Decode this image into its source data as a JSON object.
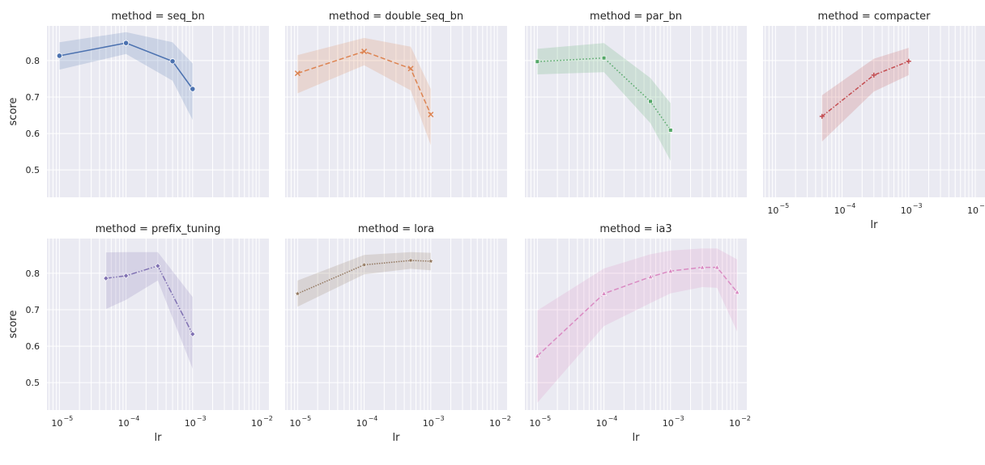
{
  "chart_data": {
    "type": "line",
    "facet_title_prefix": "method = ",
    "xlabel": "lr",
    "ylabel": "score",
    "xscale": "log",
    "xlim": [
      6.5e-06,
      0.014
    ],
    "ylim": [
      0.425,
      0.895
    ],
    "xticks": [
      1e-05,
      0.0001,
      0.001,
      0.01
    ],
    "xtick_labels": [
      [
        "10",
        "−5"
      ],
      [
        "10",
        "−4"
      ],
      [
        "10",
        "−3"
      ],
      [
        "10",
        "−2"
      ]
    ],
    "yticks": [
      0.5,
      0.6,
      0.7,
      0.8
    ],
    "ytick_labels": [
      "0.5",
      "0.6",
      "0.7",
      "0.8"
    ],
    "grid": true,
    "panels": [
      {
        "method": "seq_bn",
        "color": "#4c72b0",
        "marker": "circle",
        "dash": "solid",
        "x": [
          1e-05,
          0.0001,
          0.0005,
          0.001
        ],
        "y": [
          0.813,
          0.848,
          0.798,
          0.722
        ],
        "ci_low": [
          0.775,
          0.818,
          0.745,
          0.637
        ],
        "ci_high": [
          0.85,
          0.878,
          0.85,
          0.792
        ]
      },
      {
        "method": "double_seq_bn",
        "color": "#dd8452",
        "marker": "x",
        "dash": "dashed",
        "x": [
          1e-05,
          0.0001,
          0.0005,
          0.001
        ],
        "y": [
          0.765,
          0.825,
          0.778,
          0.652
        ],
        "ci_low": [
          0.71,
          0.787,
          0.718,
          0.568
        ],
        "ci_high": [
          0.815,
          0.862,
          0.838,
          0.722
        ]
      },
      {
        "method": "par_bn",
        "color": "#55a868",
        "marker": "square",
        "dash": "dotted",
        "x": [
          1e-05,
          0.0001,
          0.0005,
          0.001
        ],
        "y": [
          0.797,
          0.807,
          0.688,
          0.609
        ],
        "ci_low": [
          0.762,
          0.768,
          0.628,
          0.525
        ],
        "ci_high": [
          0.832,
          0.848,
          0.752,
          0.683
        ]
      },
      {
        "method": "compacter",
        "color": "#c44e52",
        "marker": "plus",
        "dash": "dashdot",
        "x": [
          5e-05,
          0.0003,
          0.001
        ],
        "y": [
          0.647,
          0.76,
          0.798
        ],
        "ci_low": [
          0.578,
          0.715,
          0.76
        ],
        "ci_high": [
          0.705,
          0.805,
          0.835
        ]
      },
      {
        "method": "prefix_tuning",
        "color": "#8172b3",
        "marker": "diamond",
        "dash": "longdashdot",
        "x": [
          5e-05,
          0.0001,
          0.0003,
          0.001
        ],
        "y": [
          0.786,
          0.793,
          0.82,
          0.633
        ],
        "ci_low": [
          0.702,
          0.727,
          0.78,
          0.538
        ],
        "ci_high": [
          0.857,
          0.858,
          0.858,
          0.735
        ]
      },
      {
        "method": "lora",
        "color": "#937860",
        "marker": "star",
        "dash": "densedot",
        "x": [
          1e-05,
          0.0001,
          0.0005,
          0.001
        ],
        "y": [
          0.744,
          0.823,
          0.835,
          0.833
        ],
        "ci_low": [
          0.708,
          0.797,
          0.812,
          0.808
        ],
        "ci_high": [
          0.78,
          0.85,
          0.858,
          0.856
        ]
      },
      {
        "method": "ia3",
        "color": "#da8bc3",
        "marker": "triangle",
        "dash": "dashed",
        "x": [
          1e-05,
          0.0001,
          0.0005,
          0.001,
          0.003,
          0.005,
          0.01
        ],
        "y": [
          0.573,
          0.744,
          0.79,
          0.806,
          0.816,
          0.816,
          0.748
        ],
        "ci_low": [
          0.445,
          0.655,
          0.718,
          0.745,
          0.762,
          0.76,
          0.64
        ],
        "ci_high": [
          0.698,
          0.813,
          0.852,
          0.862,
          0.868,
          0.868,
          0.838
        ]
      }
    ]
  }
}
